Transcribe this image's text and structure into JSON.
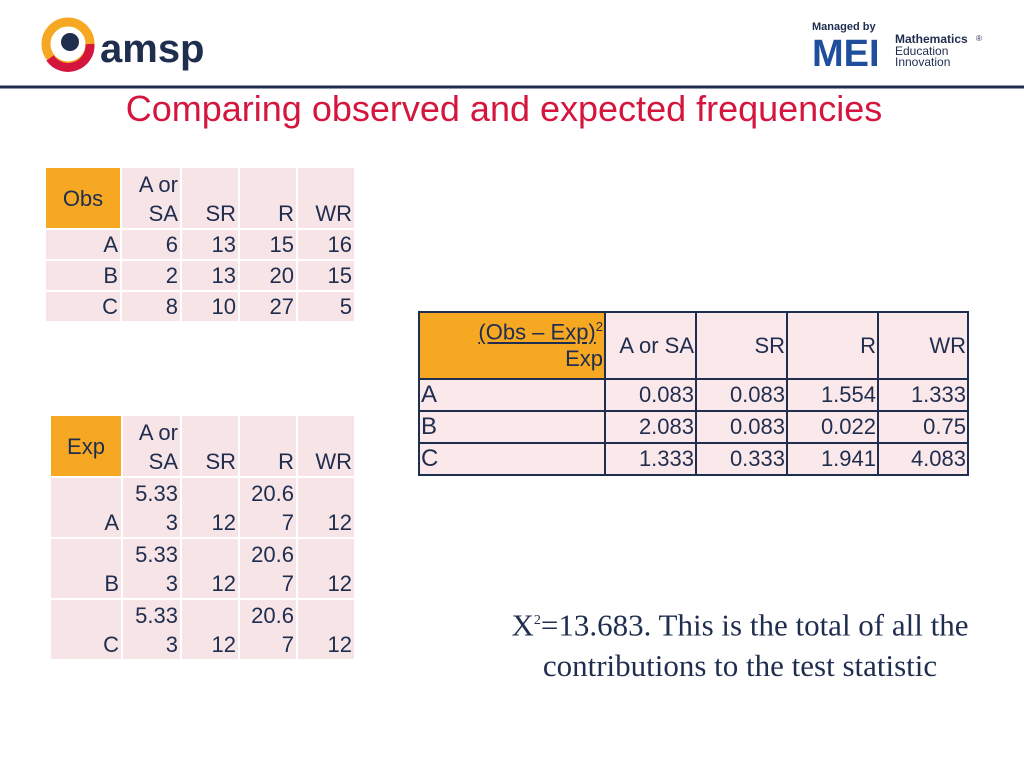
{
  "header": {
    "logo": "amsp",
    "managed_by": "Managed by",
    "mei": "MEI",
    "mei_lines": [
      "Mathematics",
      "Education",
      "Innovation"
    ],
    "registered": "®"
  },
  "title": "Comparing observed and expected frequencies",
  "obs_table": {
    "header": [
      "Obs",
      "A or SA",
      "SR",
      "R",
      "WR"
    ],
    "rows": [
      [
        "A",
        6,
        13,
        15,
        16
      ],
      [
        "B",
        2,
        13,
        20,
        15
      ],
      [
        "C",
        8,
        10,
        27,
        5
      ]
    ]
  },
  "exp_table": {
    "header": [
      "Exp",
      "A or SA",
      "SR",
      "R",
      "WR"
    ],
    "rows": [
      [
        "A",
        5.333,
        12,
        20.67,
        12
      ],
      [
        "B",
        5.333,
        12,
        20.67,
        12
      ],
      [
        "C",
        5.333,
        12,
        20.67,
        12
      ]
    ]
  },
  "contrib_table": {
    "header": [
      {
        "numerator": "(Obs – Exp)",
        "exponent": "2",
        "denominator": "Exp"
      },
      "A or SA",
      "SR",
      "R",
      "WR"
    ],
    "rows": [
      [
        "A",
        0.083,
        0.083,
        1.554,
        1.333
      ],
      [
        "B",
        2.083,
        0.083,
        0.022,
        0.75
      ],
      [
        "C",
        1.333,
        0.333,
        1.941,
        4.083
      ]
    ]
  },
  "conclusion": {
    "symbol": "X",
    "exponent": "2",
    "text": "=13.683. This is the total of all the contributions to the test statistic"
  }
}
